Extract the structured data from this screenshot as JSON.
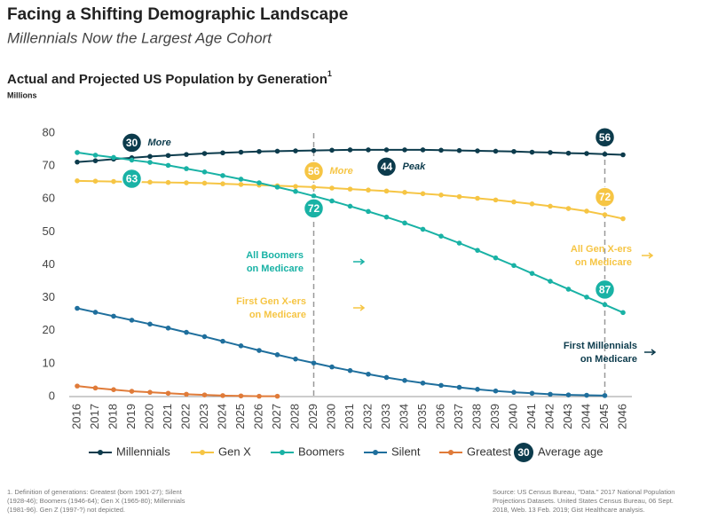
{
  "chart_data": {
    "type": "line",
    "headline": "Facing a Shifting Demographic Landscape",
    "subheadline": "Millennials Now the Largest Age Cohort",
    "title": "Actual and Projected US Population by Generation",
    "title_mark": "1",
    "y_label": "Millions",
    "categories": [
      "2016",
      "2017",
      "2018",
      "2019",
      "2020",
      "2021",
      "2022",
      "2023",
      "2024",
      "2025",
      "2026",
      "2027",
      "2028",
      "2029",
      "2030",
      "2031",
      "2032",
      "2033",
      "2034",
      "2035",
      "2036",
      "2037",
      "2038",
      "2039",
      "2040",
      "2041",
      "2042",
      "2043",
      "2044",
      "2045",
      "2046"
    ],
    "ylim": [
      0,
      80
    ],
    "yticks": [
      0,
      10,
      20,
      30,
      40,
      50,
      60,
      70,
      80
    ],
    "grid": false,
    "series": [
      {
        "name": "Millennials",
        "color": "#0c3b4c",
        "values": [
          71.2,
          71.6,
          72.1,
          72.5,
          72.9,
          73.2,
          73.5,
          73.8,
          74.0,
          74.2,
          74.4,
          74.5,
          74.6,
          74.7,
          74.8,
          74.9,
          74.9,
          74.9,
          74.9,
          74.9,
          74.8,
          74.7,
          74.6,
          74.5,
          74.4,
          74.2,
          74.1,
          73.9,
          73.8,
          73.6,
          73.4
        ]
      },
      {
        "name": "Gen X",
        "color": "#f6c544",
        "values": [
          65.5,
          65.4,
          65.3,
          65.2,
          65.1,
          65.0,
          64.9,
          64.8,
          64.6,
          64.4,
          64.2,
          64.0,
          63.8,
          63.6,
          63.3,
          63.0,
          62.7,
          62.4,
          62.0,
          61.6,
          61.2,
          60.7,
          60.2,
          59.7,
          59.1,
          58.5,
          57.8,
          57.1,
          56.3,
          55.2,
          54.0
        ]
      },
      {
        "name": "Boomers",
        "color": "#19b2a5",
        "values": [
          74.1,
          73.3,
          72.6,
          71.8,
          71.1,
          70.2,
          69.2,
          68.2,
          67.1,
          66.0,
          64.9,
          63.6,
          62.3,
          60.9,
          59.4,
          57.8,
          56.2,
          54.5,
          52.7,
          50.8,
          48.7,
          46.6,
          44.4,
          42.1,
          39.8,
          37.4,
          35.0,
          32.6,
          30.2,
          27.9,
          25.5
        ]
      },
      {
        "name": "Silent",
        "color": "#1f6f9d",
        "values": [
          26.8,
          25.6,
          24.4,
          23.2,
          22.0,
          20.8,
          19.5,
          18.2,
          16.8,
          15.4,
          14.0,
          12.7,
          11.4,
          10.2,
          9.0,
          7.9,
          6.8,
          5.8,
          4.9,
          4.1,
          3.4,
          2.8,
          2.2,
          1.7,
          1.3,
          1.0,
          0.7,
          0.5,
          0.4,
          0.3,
          null
        ]
      },
      {
        "name": "Greatest",
        "color": "#e07b39",
        "values": [
          3.2,
          2.6,
          2.1,
          1.6,
          1.3,
          1.0,
          0.7,
          0.5,
          0.3,
          0.2,
          0.1,
          0.1,
          null,
          null,
          null,
          null,
          null,
          null,
          null,
          null,
          null,
          null,
          null,
          null,
          null,
          null,
          null,
          null,
          null,
          null,
          null
        ]
      }
    ],
    "age_legend": {
      "name": "Average age",
      "age": 30
    },
    "ages": [
      {
        "age": 30,
        "year": 3,
        "series": 0,
        "text": "More"
      },
      {
        "age": 63,
        "year": 3,
        "series": 2
      },
      {
        "age": 56,
        "year": 13,
        "series": 1,
        "text": "More"
      },
      {
        "age": 72,
        "year": 13,
        "series": 2
      },
      {
        "age": 44,
        "year": 17,
        "series": 0,
        "text": "Peak"
      },
      {
        "age": 56,
        "year": 29,
        "series": 0
      },
      {
        "age": 72,
        "year": 29,
        "series": 1
      },
      {
        "age": 87,
        "year": 29,
        "series": 2
      }
    ],
    "reference_years": [
      13,
      29
    ],
    "notes": [
      {
        "lines": [
          "All Boomers",
          "on Medicare"
        ],
        "color": "#19b2a5"
      },
      {
        "lines": [
          "First Gen X-ers",
          "on Medicare"
        ],
        "color": "#f6c544"
      },
      {
        "lines": [
          "All Gen X-ers",
          "on Medicare"
        ],
        "color": "#f6c544"
      },
      {
        "lines": [
          "First Millennials",
          "on Medicare"
        ],
        "color": "#0c3b4c"
      }
    ],
    "footnote": [
      "1. Definition of generations: Greatest (born 1901-27); Silent",
      "(1928-46); Boomers (1946-64); Gen X (1965-80); Millennials",
      "(1981-96). Gen Z (1997-?) not depicted."
    ],
    "source": [
      "Source: US Census Bureau, \"Data.\" 2017 National Population",
      "Projections Datasets. United States Census Bureau, 06 Sept.",
      "2018, Web. 13 Feb. 2019; Gist Healthcare analysis."
    ]
  }
}
